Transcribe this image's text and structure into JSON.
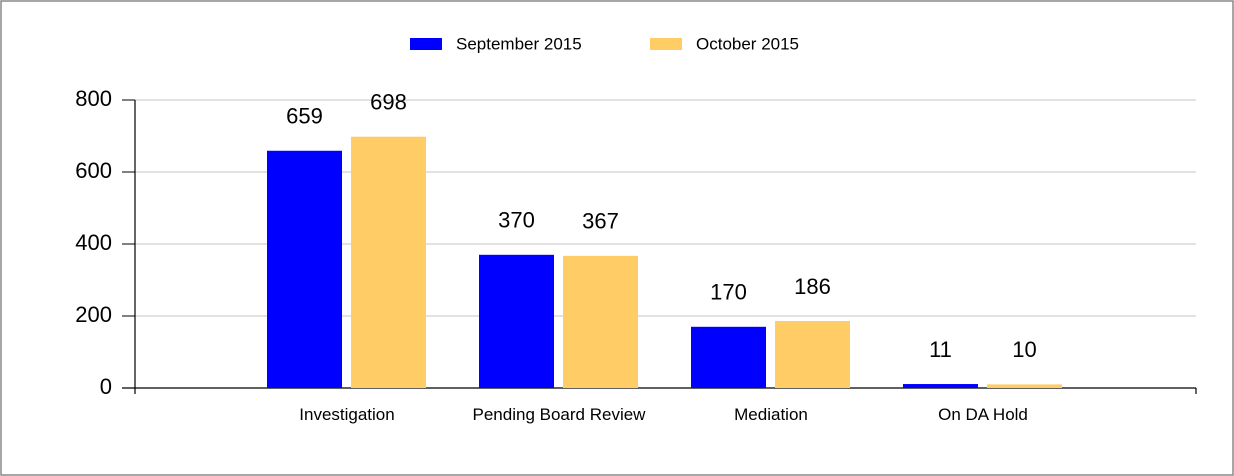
{
  "chart_data": {
    "type": "bar",
    "categories": [
      "Investigation",
      "Pending Board Review",
      "Mediation",
      "On DA Hold"
    ],
    "series": [
      {
        "name": "September 2015",
        "color": "#0000ff",
        "values": [
          659,
          370,
          170,
          11
        ]
      },
      {
        "name": "October 2015",
        "color": "#ffcc66",
        "values": [
          698,
          367,
          186,
          10
        ]
      }
    ],
    "ylim": [
      0,
      800
    ],
    "yticks": [
      0,
      200,
      400,
      600,
      800
    ],
    "grid": true,
    "legend": "top"
  }
}
